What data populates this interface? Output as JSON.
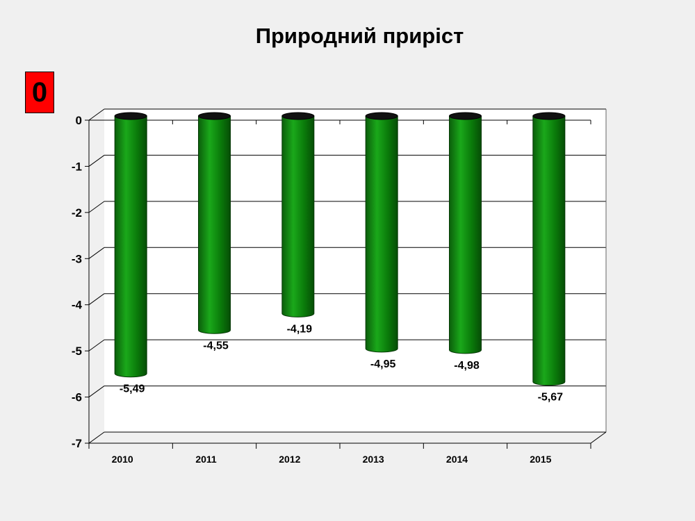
{
  "badge": {
    "text": "0"
  },
  "chart_data": {
    "type": "bar",
    "title": "Природний приріст",
    "xlabel": "",
    "ylabel": "",
    "categories": [
      "2010",
      "2011",
      "2012",
      "2013",
      "2014",
      "2015"
    ],
    "values": [
      -5.49,
      -4.55,
      -4.19,
      -4.95,
      -4.98,
      -5.67
    ],
    "value_labels": [
      "-5,49",
      "-4,55",
      "-4,19",
      "-4,95",
      "-4,98",
      "-5,67"
    ],
    "ylim": [
      -7,
      0
    ],
    "yticks": [
      0,
      -1,
      -2,
      -3,
      -4,
      -5,
      -6,
      -7
    ],
    "grid": true,
    "legend": "none",
    "bar_color": "#0a7a0a",
    "bar_top_color": "#111111"
  }
}
